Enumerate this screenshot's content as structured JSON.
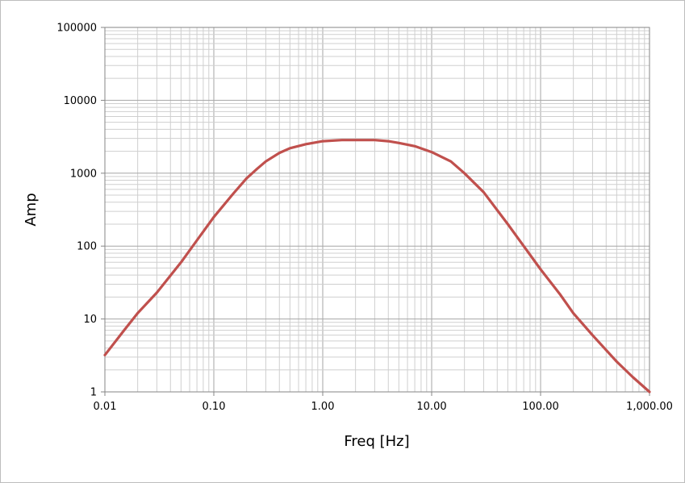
{
  "chart_data": {
    "type": "line",
    "title": "",
    "xlabel": "Freq [Hz]",
    "ylabel": "Amp",
    "xscale": "log",
    "yscale": "log",
    "xlim": [
      0.01,
      1000
    ],
    "ylim": [
      1,
      100000
    ],
    "grid": "on (major and minor)",
    "legend": "none",
    "x_tick_labels": [
      "0.01",
      "0.10",
      "1.00",
      "10.00",
      "100.00",
      "1,000.00"
    ],
    "y_tick_labels": [
      "1",
      "10",
      "100",
      "1000",
      "10000",
      "100000"
    ],
    "series": [
      {
        "color": "#c0504d",
        "x": [
          0.01,
          0.015,
          0.02,
          0.03,
          0.05,
          0.07,
          0.1,
          0.15,
          0.2,
          0.25,
          0.3,
          0.4,
          0.5,
          0.7,
          1.0,
          1.5,
          2.0,
          3.0,
          4.0,
          5.0,
          7.0,
          10.0,
          15.0,
          20.0,
          30.0,
          50.0,
          70.0,
          100.0,
          150.0,
          200.0,
          300.0,
          500.0,
          700.0,
          1000.0
        ],
        "y": [
          3.2,
          7,
          12,
          23,
          60,
          120,
          250,
          520,
          850,
          1150,
          1450,
          1900,
          2200,
          2500,
          2750,
          2850,
          2850,
          2850,
          2750,
          2600,
          2350,
          1950,
          1450,
          1000,
          550,
          200,
          100,
          48,
          22,
          12,
          6,
          2.6,
          1.6,
          0.95
        ]
      }
    ]
  }
}
